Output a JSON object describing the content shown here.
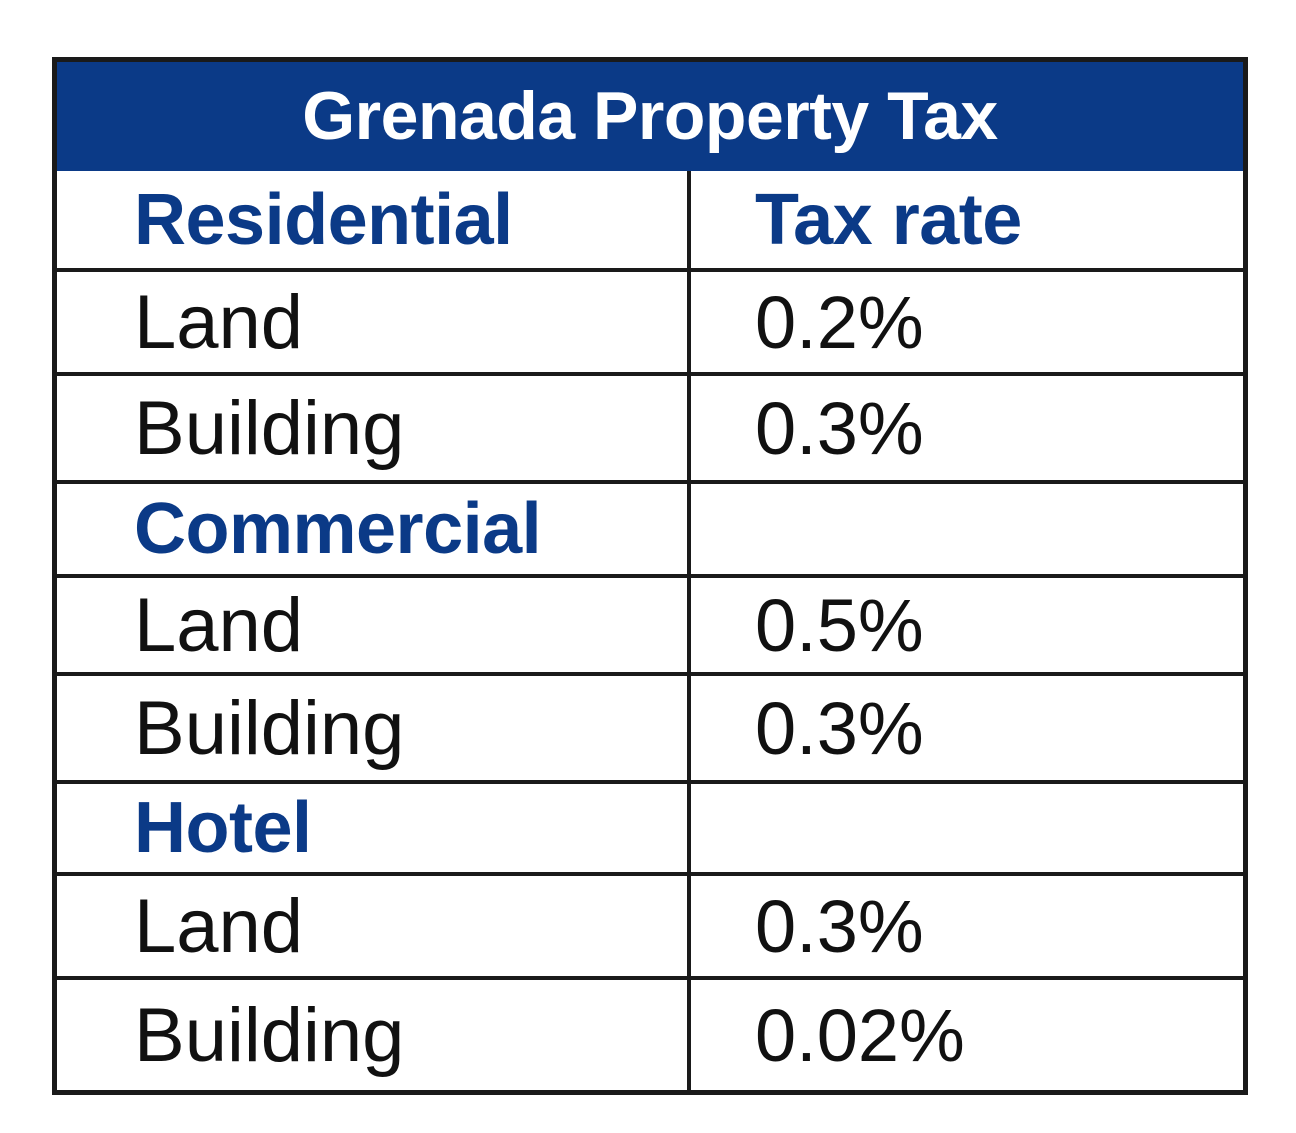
{
  "title": "Grenada Property Tax",
  "header": {
    "category": "Residential",
    "rate_label": "Tax rate"
  },
  "rows": [
    {
      "label": "Land",
      "rate": "0.2%"
    },
    {
      "label": "Building",
      "rate": "0.3%"
    },
    {
      "label": "Commercial",
      "rate": ""
    },
    {
      "label": "Land",
      "rate": "0.5%"
    },
    {
      "label": "Building",
      "rate": "0.3%"
    },
    {
      "label": "Hotel",
      "rate": ""
    },
    {
      "label": "Land",
      "rate": "0.3%"
    },
    {
      "label": "Building",
      "rate": "0.02%"
    }
  ],
  "colors": {
    "title_background": "#0b3a87",
    "heading_text": "#0b3a87",
    "body_text": "#111111",
    "border": "#1a1a1a"
  }
}
